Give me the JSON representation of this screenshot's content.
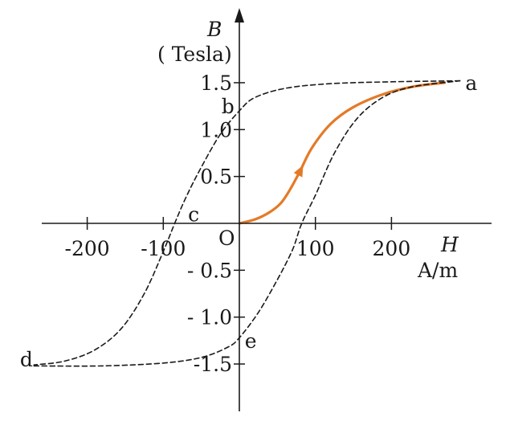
{
  "chart_data": {
    "type": "line",
    "title": "",
    "xaxis": {
      "symbol": "H",
      "unit": "A/m",
      "range": [
        -265,
        330
      ],
      "ticks": [
        -200,
        -100,
        100,
        200
      ],
      "tick_labels": [
        "-200",
        "-100",
        "100",
        "200"
      ]
    },
    "yaxis": {
      "symbol": "B",
      "unit": "( Tesla)",
      "range": [
        -2.2,
        1.9
      ],
      "ticks": [
        1.5,
        1.0,
        0.5,
        -0.5,
        -1.0,
        -1.5
      ],
      "tick_labels": [
        "1.5",
        "1.0",
        "0.5",
        "- 0.5",
        "- 1.0",
        "-1.5"
      ]
    },
    "origin_label": "O",
    "grid": false,
    "series": [
      {
        "style": "solid",
        "color": "#e47a27",
        "arrow_at_index": 5,
        "points": [
          [
            0,
            0.0
          ],
          [
            20,
            0.04
          ],
          [
            40,
            0.12
          ],
          [
            55,
            0.22
          ],
          [
            68,
            0.38
          ],
          [
            80,
            0.56
          ],
          [
            95,
            0.8
          ],
          [
            120,
            1.06
          ],
          [
            150,
            1.24
          ],
          [
            190,
            1.38
          ],
          [
            230,
            1.46
          ],
          [
            270,
            1.5
          ]
        ]
      },
      {
        "style": "dashed",
        "color": "#1a1a1a",
        "points": [
          [
            290,
            1.52
          ],
          [
            200,
            1.51
          ],
          [
            120,
            1.49
          ],
          [
            60,
            1.44
          ],
          [
            20,
            1.34
          ],
          [
            0,
            1.2
          ],
          [
            -25,
            0.95
          ],
          [
            -50,
            0.6
          ],
          [
            -70,
            0.28
          ],
          [
            -85,
            0.0
          ],
          [
            -100,
            -0.3
          ],
          [
            -125,
            -0.75
          ],
          [
            -155,
            -1.12
          ],
          [
            -190,
            -1.35
          ],
          [
            -230,
            -1.47
          ],
          [
            -270,
            -1.51
          ]
        ]
      },
      {
        "style": "dashed",
        "color": "#1a1a1a",
        "points": [
          [
            -270,
            -1.52
          ],
          [
            -180,
            -1.52
          ],
          [
            -100,
            -1.49
          ],
          [
            -50,
            -1.43
          ],
          [
            -15,
            -1.32
          ],
          [
            0,
            -1.22
          ],
          [
            25,
            -0.95
          ],
          [
            50,
            -0.6
          ],
          [
            70,
            -0.28
          ],
          [
            82,
            0.0
          ],
          [
            100,
            0.3
          ],
          [
            125,
            0.75
          ],
          [
            155,
            1.12
          ],
          [
            190,
            1.35
          ],
          [
            230,
            1.46
          ],
          [
            290,
            1.52
          ]
        ]
      }
    ],
    "annotations": [
      {
        "text": "a",
        "x": 305,
        "y": 1.5
      },
      {
        "text": "b",
        "x": -15,
        "y": 1.25
      },
      {
        "text": "c",
        "x": -60,
        "y": 0.1
      },
      {
        "text": "d",
        "x": -280,
        "y": -1.45
      },
      {
        "text": "e",
        "x": 15,
        "y": -1.25
      }
    ]
  }
}
